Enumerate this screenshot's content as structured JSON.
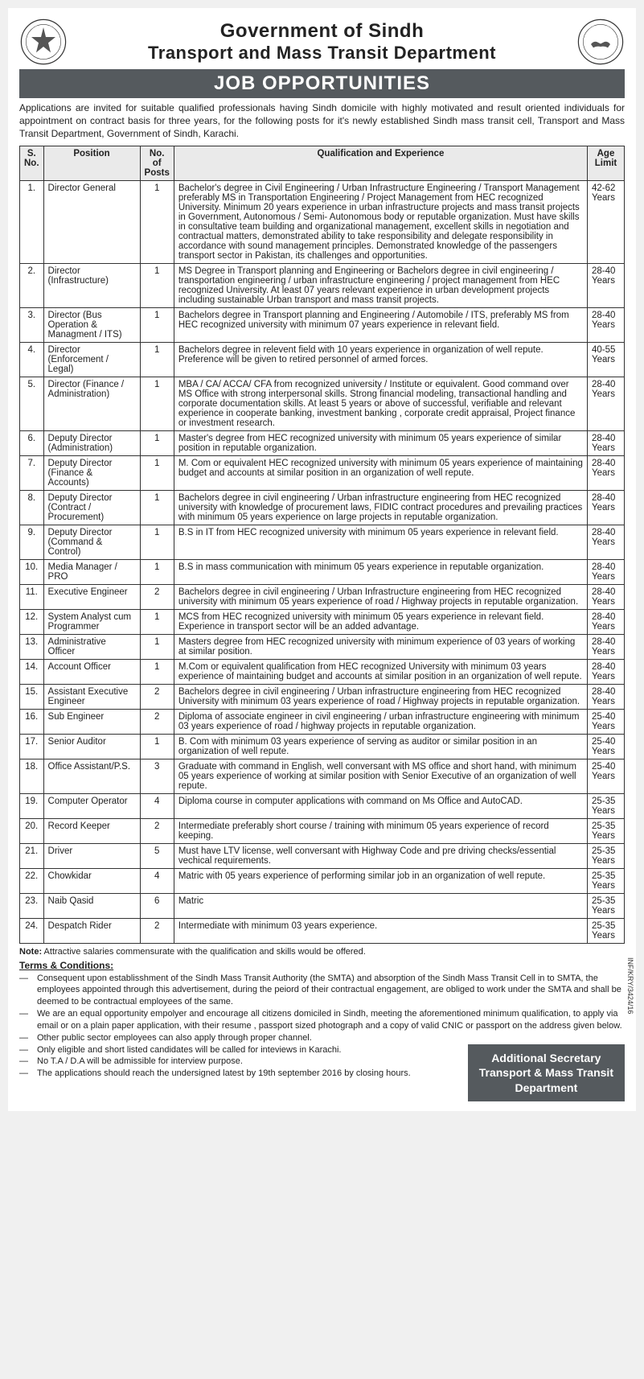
{
  "header": {
    "gov": "Government of Sindh",
    "dept": "Transport and Mass Transit Department",
    "banner": "JOB OPPORTUNITIES"
  },
  "intro": "Applications are invited for suitable qualified professionals having Sindh domicile with highly motivated and result oriented individuals for appointment on contract basis for three years, for the following posts for it's newly established Sindh mass transit cell, Transport and Mass Transit Department, Government of Sindh, Karachi.",
  "table": {
    "headers": {
      "sn": "S. No.",
      "position": "Position",
      "posts": "No. of Posts",
      "qual": "Qualification and Experience",
      "age": "Age Limit"
    },
    "rows": [
      {
        "sn": "1.",
        "position": "Director General",
        "posts": "1",
        "qual": "Bachelor's degree in Civil Engineering / Urban Infrastructure Engineering / Transport Management preferably MS in Transportation Engineering / Project Management from HEC recognized University. Minimum 20 years experience in urban infrastructure projects and mass transit projects in Government, Autonomous / Semi- Autonomous body or reputable organization. Must have skills in consultative team building and organizational management, excellent skills in negotiation and contractual matters, demonstrated ability to take responsibility and delegate responsibility in accordance with sound management principles. Demonstrated knowledge of the passengers transport sector in Pakistan, its challenges and opportunities.",
        "age": "42-62 Years"
      },
      {
        "sn": "2.",
        "position": "Director (Infrastructure)",
        "posts": "1",
        "qual": "MS Degree in Transport planning and Engineering or Bachelors degree in civil engineering / transportation engineering / urban infrastructure engineering / project management from HEC recognized University. At least 07 years relevant experience in urban development projects including sustainable Urban transport and mass transit projects.",
        "age": "28-40 Years"
      },
      {
        "sn": "3.",
        "position": "Director (Bus Operation & Managment / ITS)",
        "posts": "1",
        "qual": "Bachelors degree in Transport planning and Engineering / Automobile / ITS, preferably MS from HEC recognized university with minimum 07 years experience in relevant field.",
        "age": "28-40 Years"
      },
      {
        "sn": "4.",
        "position": "Director (Enforcement / Legal)",
        "posts": "1",
        "qual": "Bachelors degree in relevent field with 10 years experience in organization of well repute. Preference will be given to retired personnel of armed forces.",
        "age": "40-55 Years"
      },
      {
        "sn": "5.",
        "position": "Director (Finance / Administration)",
        "posts": "1",
        "qual": "MBA / CA/ ACCA/ CFA from recognized university / Institute or equivalent. Good command over MS Office with strong interpersonal skills. Strong financial modeling, transactional handling and corporate documentation skills. At least 5 years or above of successful, verifiable and relevant experience in cooperate banking, investment banking , corporate credit appraisal, Project finance or investment research.",
        "age": "28-40 Years"
      },
      {
        "sn": "6.",
        "position": "Deputy Director (Administration)",
        "posts": "1",
        "qual": "Master's degree from HEC recognized university with minimum 05 years experience of similar position in reputable organization.",
        "age": "28-40 Years"
      },
      {
        "sn": "7.",
        "position": "Deputy Director (Finance & Accounts)",
        "posts": "1",
        "qual": "M. Com or equivalent HEC recognized university with minimum 05 years experience of maintaining budget and accounts at similar position in an organization of well repute.",
        "age": "28-40 Years"
      },
      {
        "sn": "8.",
        "position": "Deputy Director (Contract / Procurement)",
        "posts": "1",
        "qual": "Bachelors degree in civil engineering / Urban infrastructure engineering from HEC recognized university with knowledge of procurement laws, FIDIC contract procedures and prevailing practices with minimum 05 years experience on large projects in reputable organization.",
        "age": "28-40 Years"
      },
      {
        "sn": "9.",
        "position": "Deputy Director (Command & Control)",
        "posts": "1",
        "qual": "B.S in IT from HEC recognized university with minimum 05 years experience in relevant field.",
        "age": "28-40 Years"
      },
      {
        "sn": "10.",
        "position": "Media Manager / PRO",
        "posts": "1",
        "qual": "B.S in mass communication with minimum 05 years experience in reputable organization.",
        "age": "28-40 Years"
      },
      {
        "sn": "11.",
        "position": "Executive Engineer",
        "posts": "2",
        "qual": "Bachelors degree in civil engineering / Urban Infrastructure engineering from HEC recognized university with minimum 05 years experience of road / Highway projects in reputable organization.",
        "age": "28-40 Years"
      },
      {
        "sn": "12.",
        "position": "System Analyst cum Programmer",
        "posts": "1",
        "qual": "MCS from HEC recognized university with minimum 05 years experience in relevant field. Experience in transport sector will be an added advantage.",
        "age": "28-40 Years"
      },
      {
        "sn": "13.",
        "position": "Administrative Officer",
        "posts": "1",
        "qual": "Masters degree from HEC recognized university with minimum experience of 03 years of working at similar position.",
        "age": "28-40 Years"
      },
      {
        "sn": "14.",
        "position": "Account Officer",
        "posts": "1",
        "qual": "M.Com or equivalent qualification from HEC recognized University with minimum 03 years experience of maintaining budget and accounts at similar position in an organization of well repute.",
        "age": "28-40 Years"
      },
      {
        "sn": "15.",
        "position": "Assistant Executive Engineer",
        "posts": "2",
        "qual": "Bachelors degree in civil engineering / Urban infrastructure engineering from HEC recognized University with minimum 03 years experience of road / Highway projects in reputable organization.",
        "age": "28-40 Years"
      },
      {
        "sn": "16.",
        "position": "Sub Engineer",
        "posts": "2",
        "qual": "Diploma of associate engineer in civil engineering / urban infrastructure engineering with minimum 03 years experience of road / highway projects in reputable organization.",
        "age": "25-40 Years"
      },
      {
        "sn": "17.",
        "position": "Senior Auditor",
        "posts": "1",
        "qual": "B. Com with minimum 03 years experience of serving as auditor or similar position in an organization of well repute.",
        "age": "25-40 Years"
      },
      {
        "sn": "18.",
        "position": "Office Assistant/P.S.",
        "posts": "3",
        "qual": "Graduate with command in English, well conversant with MS office and short hand, with minimum 05 years experience of working at similar position with Senior Executive of an organization of well repute.",
        "age": "25-40 Years"
      },
      {
        "sn": "19.",
        "position": "Computer Operator",
        "posts": "4",
        "qual": "Diploma course in computer applications with command on Ms Office and AutoCAD.",
        "age": "25-35 Years"
      },
      {
        "sn": "20.",
        "position": "Record Keeper",
        "posts": "2",
        "qual": "Intermediate preferably short course / training with minimum 05 years experience of record keeping.",
        "age": "25-35 Years"
      },
      {
        "sn": "21.",
        "position": "Driver",
        "posts": "5",
        "qual": "Must have LTV license, well conversant with Highway Code and pre driving checks/essential vechical requirements.",
        "age": "25-35 Years"
      },
      {
        "sn": "22.",
        "position": "Chowkidar",
        "posts": "4",
        "qual": "Matric with 05 years experience of performing similar job in an organization of well repute.",
        "age": "25-35 Years"
      },
      {
        "sn": "23.",
        "position": "Naib Qasid",
        "posts": "6",
        "qual": "Matric",
        "age": "25-35 Years"
      },
      {
        "sn": "24.",
        "position": "Despatch Rider",
        "posts": "2",
        "qual": "Intermediate with minimum 03 years experience.",
        "age": "25-35 Years"
      }
    ]
  },
  "note_label": "Note:",
  "note": " Attractive salaries commensurate with the qualification and skills would be offered.",
  "terms_title": "Terms & Conditions:",
  "terms": [
    "Consequent upon establisshment of the Sindh Mass Transit Authority (the SMTA) and absorption of the Sindh Mass Transit Cell in to SMTA, the employees appointed through this advertisement, during the peiord of their contractual engagement, are obliged to work under the SMTA and shall be deemed to be contractual employees of the same.",
    "We are an equal opportunity empolyer and encourage all citizens domiciled in Sindh, meeting the aforementioned minimum qualification, to apply via email or on a plain paper application, with their resume , passport sized photograph and a copy of valid CNIC or passport on the address given below.",
    "Other public sector employees can also apply through proper channel.",
    "Only eligible and short listed candidates will be called for inteviews in Karachi.",
    "No T.A / D.A will be admissible for interview purpose.",
    "The applications should reach the undersigned latest by 19th september 2016 by closing hours."
  ],
  "footer": {
    "line1": "Additional Secretary",
    "line2": "Transport & Mass Transit",
    "line3": "Department"
  },
  "side_ref": "INF/KRY/3424/16"
}
